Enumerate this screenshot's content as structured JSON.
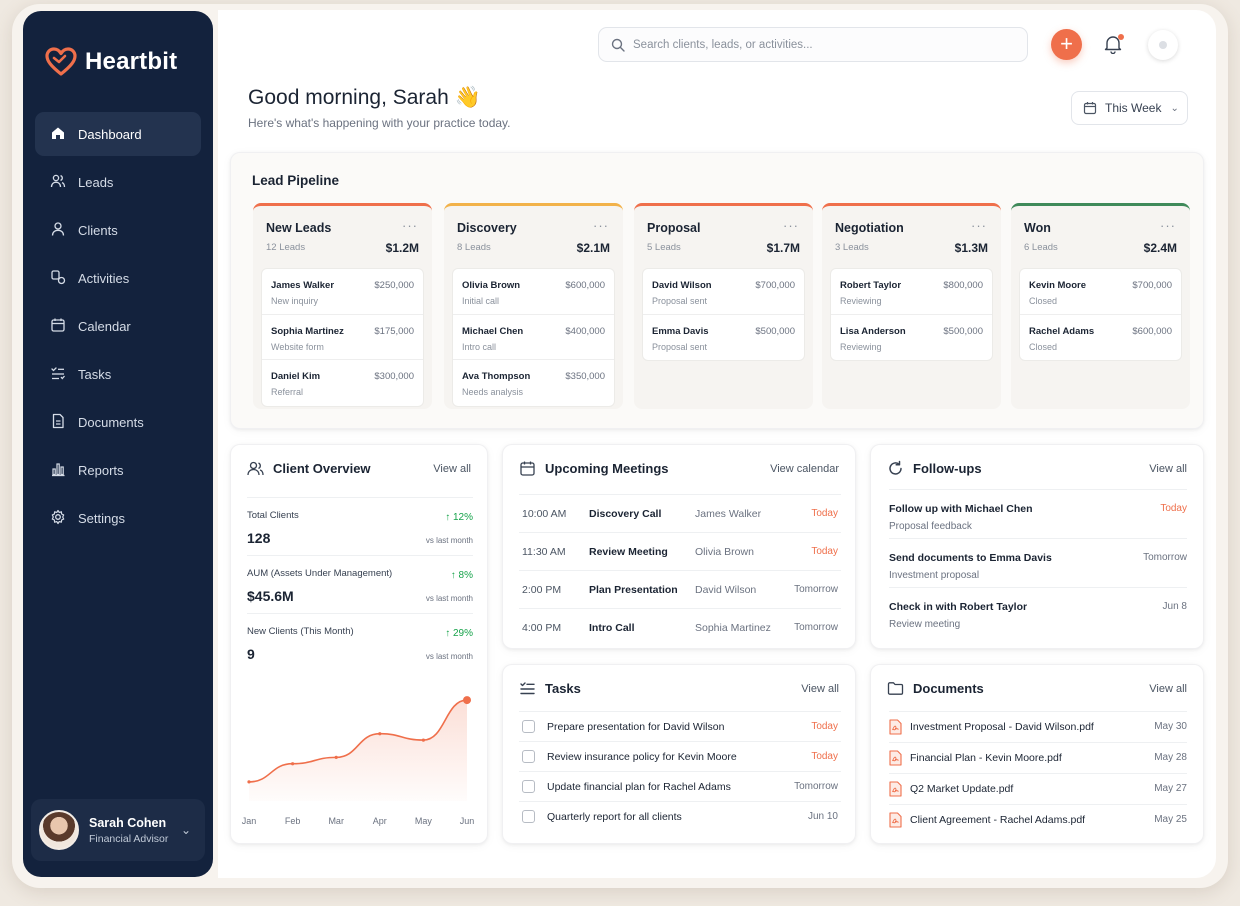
{
  "brand": {
    "name": "Heartbit",
    "accent": "#ef6f4b",
    "sidebar_bg": "#13223d"
  },
  "nav": [
    {
      "label": "Dashboard",
      "icon": "home-icon",
      "active": true
    },
    {
      "label": "Leads",
      "icon": "users-icon"
    },
    {
      "label": "Clients",
      "icon": "user-icon"
    },
    {
      "label": "Activities",
      "icon": "activity-icon"
    },
    {
      "label": "Calendar",
      "icon": "calendar-icon"
    },
    {
      "label": "Tasks",
      "icon": "checklist-icon"
    },
    {
      "label": "Documents",
      "icon": "document-icon"
    },
    {
      "label": "Reports",
      "icon": "bar-chart-icon"
    },
    {
      "label": "Settings",
      "icon": "gear-icon"
    }
  ],
  "user": {
    "name": "Sarah Cohen",
    "role": "Financial Advisor"
  },
  "search": {
    "placeholder": "Search clients, leads, or activities..."
  },
  "header": {
    "greeting": "Good morning, Sarah 👋",
    "subtitle": "Here's what's happening with your practice today.",
    "range": "This Week"
  },
  "pipeline": {
    "title": "Lead Pipeline",
    "stages": [
      {
        "name": "New Leads",
        "count": "12 Leads",
        "total": "$1.2M",
        "color": "#ef6f4b",
        "deals": [
          {
            "name": "James Walker",
            "value": "$250,000",
            "note": "New inquiry"
          },
          {
            "name": "Sophia Martinez",
            "value": "$175,000",
            "note": "Website form"
          },
          {
            "name": "Daniel Kim",
            "value": "$300,000",
            "note": "Referral"
          }
        ]
      },
      {
        "name": "Discovery",
        "count": "8 Leads",
        "total": "$2.1M",
        "color": "#f2b24a",
        "deals": [
          {
            "name": "Olivia Brown",
            "value": "$600,000",
            "note": "Initial call"
          },
          {
            "name": "Michael Chen",
            "value": "$400,000",
            "note": "Intro call"
          },
          {
            "name": "Ava Thompson",
            "value": "$350,000",
            "note": "Needs analysis"
          }
        ]
      },
      {
        "name": "Proposal",
        "count": "5 Leads",
        "total": "$1.7M",
        "color": "#ef6f4b",
        "deals": [
          {
            "name": "David Wilson",
            "value": "$700,000",
            "note": "Proposal sent"
          },
          {
            "name": "Emma Davis",
            "value": "$500,000",
            "note": "Proposal sent"
          }
        ]
      },
      {
        "name": "Negotiation",
        "count": "3 Leads",
        "total": "$1.3M",
        "color": "#ef6f4b",
        "deals": [
          {
            "name": "Robert Taylor",
            "value": "$800,000",
            "note": "Reviewing"
          },
          {
            "name": "Lisa Anderson",
            "value": "$500,000",
            "note": "Reviewing"
          }
        ]
      },
      {
        "name": "Won",
        "count": "6 Leads",
        "total": "$2.4M",
        "color": "#3f8a5a",
        "deals": [
          {
            "name": "Kevin Moore",
            "value": "$700,000",
            "note": "Closed"
          },
          {
            "name": "Rachel Adams",
            "value": "$600,000",
            "note": "Closed"
          }
        ]
      }
    ]
  },
  "overview": {
    "title": "Client Overview",
    "link": "View all",
    "stats": [
      {
        "label": "Total Clients",
        "value": "128",
        "change": "↑ 12%",
        "vs": "vs last month"
      },
      {
        "label": "AUM (Assets Under Management)",
        "value": "$45.6M",
        "change": "↑ 8%",
        "vs": "vs last month"
      },
      {
        "label": "New Clients (This Month)",
        "value": "9",
        "change": "↑ 29%",
        "vs": "vs last month"
      }
    ]
  },
  "chart_data": {
    "type": "area",
    "categories": [
      "Jan",
      "Feb",
      "Mar",
      "Apr",
      "May",
      "Jun"
    ],
    "values": [
      1.0,
      3.0,
      3.7,
      6.3,
      5.6,
      10.0
    ],
    "ylim": [
      0,
      11
    ],
    "color": "#ef6f4b",
    "grid": false
  },
  "meetings": {
    "title": "Upcoming Meetings",
    "link": "View calendar",
    "items": [
      {
        "time": "10:00 AM",
        "title": "Discovery Call",
        "who": "James Walker",
        "when": "Today"
      },
      {
        "time": "11:30 AM",
        "title": "Review Meeting",
        "who": "Olivia Brown",
        "when": "Today"
      },
      {
        "time": "2:00 PM",
        "title": "Plan Presentation",
        "who": "David Wilson",
        "when": "Tomorrow"
      },
      {
        "time": "4:00 PM",
        "title": "Intro Call",
        "who": "Sophia Martinez",
        "when": "Tomorrow"
      }
    ]
  },
  "followups": {
    "title": "Follow-ups",
    "link": "View all",
    "items": [
      {
        "title": "Follow up with Michael Chen",
        "sub": "Proposal feedback",
        "when": "Today"
      },
      {
        "title": "Send documents to Emma Davis",
        "sub": "Investment proposal",
        "when": "Tomorrow"
      },
      {
        "title": "Check in with Robert Taylor",
        "sub": "Review meeting",
        "when": "Jun 8"
      }
    ]
  },
  "tasks": {
    "title": "Tasks",
    "link": "View all",
    "items": [
      {
        "title": "Prepare presentation for David Wilson",
        "when": "Today"
      },
      {
        "title": "Review insurance policy for Kevin Moore",
        "when": "Today"
      },
      {
        "title": "Update financial plan for Rachel Adams",
        "when": "Tomorrow"
      },
      {
        "title": "Quarterly report for all clients",
        "when": "Jun 10"
      }
    ]
  },
  "documents": {
    "title": "Documents",
    "link": "View all",
    "items": [
      {
        "name": "Investment Proposal - David Wilson.pdf",
        "date": "May 30"
      },
      {
        "name": "Financial Plan - Kevin Moore.pdf",
        "date": "May 28"
      },
      {
        "name": "Q2 Market Update.pdf",
        "date": "May 27"
      },
      {
        "name": "Client Agreement - Rachel Adams.pdf",
        "date": "May 25"
      }
    ]
  }
}
